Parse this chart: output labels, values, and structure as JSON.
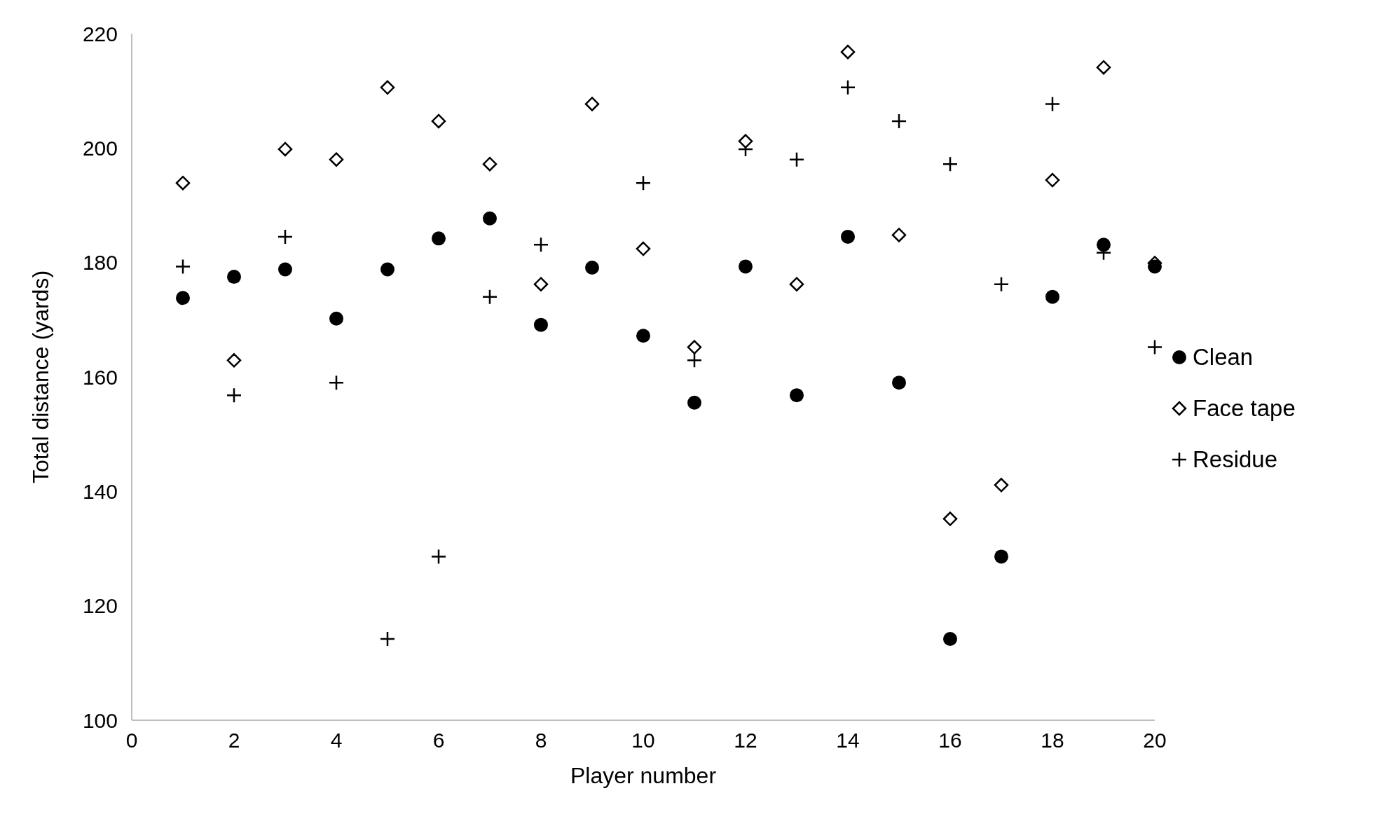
{
  "chart_data": {
    "type": "scatter",
    "xlabel": "Player number",
    "ylabel": "Total distance (yards)",
    "x": [
      1,
      2,
      3,
      4,
      5,
      6,
      7,
      8,
      9,
      10,
      11,
      12,
      13,
      14,
      15,
      16,
      17,
      18,
      19,
      20
    ],
    "xlim": [
      0,
      20
    ],
    "xticks": [
      0,
      2,
      4,
      6,
      8,
      10,
      12,
      14,
      16,
      18,
      20
    ],
    "ylim": [
      100,
      220
    ],
    "yticks": [
      100,
      120,
      140,
      160,
      180,
      200,
      220
    ],
    "grid": false,
    "legend": "right",
    "series": [
      {
        "name": "Clean",
        "color": "#000000",
        "marker": "circle",
        "values": [
          173.8,
          177.5,
          178.8,
          170.2,
          178.8,
          184.2,
          187.7,
          169.1,
          179.1,
          167.2,
          155.5,
          179.3,
          156.8,
          184.5,
          159.0,
          114.2,
          128.6,
          174.0,
          183.1,
          179.3
        ]
      },
      {
        "name": "Face tape",
        "color": "#000000",
        "marker": "diamond",
        "values": [
          193.9,
          162.9,
          199.8,
          198.0,
          210.6,
          204.7,
          197.2,
          176.2,
          207.7,
          182.4,
          165.2,
          201.2,
          176.2,
          216.8,
          184.8,
          135.2,
          141.1,
          194.4,
          214.1,
          179.9
        ]
      },
      {
        "name": "Residue",
        "color": "#000000",
        "marker": "cross",
        "values": [
          179.3,
          156.8,
          184.5,
          159.0,
          114.2,
          128.6,
          174.0,
          183.1,
          null,
          193.9,
          162.9,
          199.8,
          198.0,
          210.6,
          204.7,
          197.2,
          176.2,
          207.7,
          181.7,
          165.2
        ]
      }
    ]
  }
}
